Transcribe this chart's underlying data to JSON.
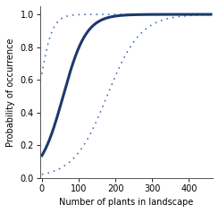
{
  "solid_color": "#1b3a6b",
  "dashed_color": "#4a74b0",
  "solid_lw": 2.2,
  "dashed_lw": 1.2,
  "xlabel": "Number of plants in landscape",
  "ylabel": "Probability of occurrence",
  "xlim": [
    -5,
    465
  ],
  "ylim": [
    0.0,
    1.05
  ],
  "xticks": [
    0,
    100,
    200,
    300,
    400
  ],
  "yticks": [
    0.0,
    0.2,
    0.4,
    0.6,
    0.8,
    1.0
  ],
  "mean_b0": -1.85,
  "mean_b1": 0.032,
  "upper_b0": 0.55,
  "upper_b1": 0.058,
  "lower_b0": -3.9,
  "lower_b1": 0.022
}
